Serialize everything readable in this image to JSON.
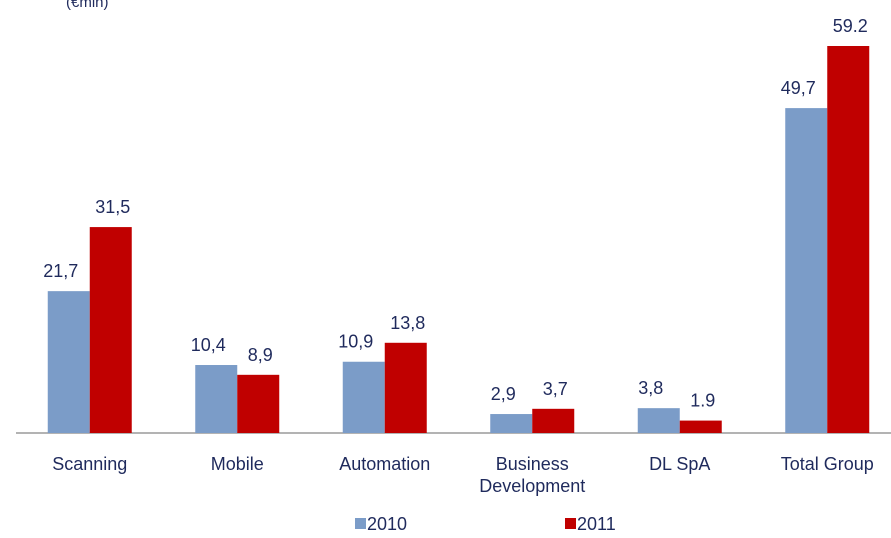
{
  "chart_data": {
    "type": "bar",
    "title": "(€mln)",
    "categories": [
      "Scanning",
      "Mobile",
      "Automation",
      "Business Development",
      "DL SpA",
      "Total Group"
    ],
    "series": [
      {
        "name": "2010",
        "color": "#7b9cc8",
        "values": [
          21.7,
          10.4,
          10.9,
          2.9,
          3.8,
          49.7
        ],
        "value_labels": [
          "21,7",
          "10,4",
          "10,9",
          "2,9",
          "3,8",
          "49,7"
        ]
      },
      {
        "name": "2011",
        "color": "#c00000",
        "values": [
          31.5,
          8.9,
          13.8,
          3.7,
          1.9,
          59.2
        ],
        "value_labels": [
          "31,5",
          "8,9",
          "13,8",
          "3,7",
          "1.9",
          "59.2"
        ]
      }
    ]
  }
}
